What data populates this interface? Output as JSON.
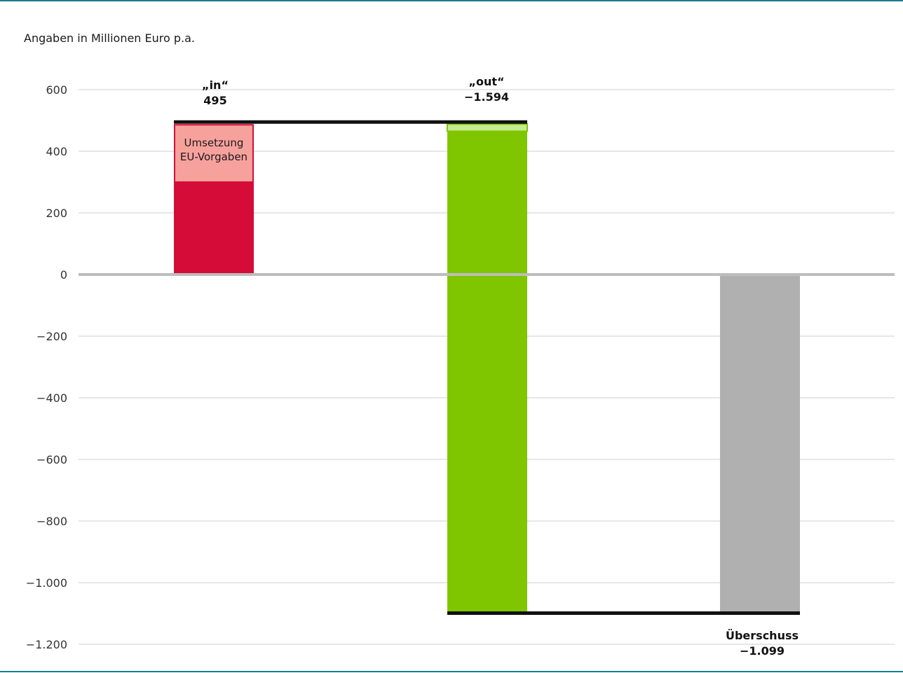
{
  "chart_data": {
    "type": "bar",
    "subtitle": "Angaben in Millionen Euro p.a.",
    "ylim": [
      -1250,
      600
    ],
    "yticks": [
      600,
      400,
      200,
      0,
      -200,
      -400,
      -600,
      -800,
      -1000,
      -1200
    ],
    "ytick_labels": [
      "600",
      "400",
      "200",
      "0",
      "−200",
      "−400",
      "−600",
      "−800",
      "−1.000",
      "−1.200"
    ],
    "grid": true,
    "colors": {
      "in": "#d50c38",
      "in_eu": "#f7a19d",
      "out": "#80c600",
      "out_eu": "#c6ec92",
      "surplus": "#b0b0b0",
      "axis_rule": "#1a7d8c"
    },
    "bars": [
      {
        "name": "„in“",
        "value_label": "495",
        "start": 0,
        "end": 495,
        "segments": [
          {
            "from": 0,
            "to": 300,
            "label": ""
          },
          {
            "from": 300,
            "to": 495,
            "label_lines": [
              "Umsetzung",
              "EU-Vorgaben"
            ]
          }
        ]
      },
      {
        "name": "„out“",
        "value_label": "−1.594",
        "start": 495,
        "end": -1099,
        "segments": [
          {
            "from": -1099,
            "to": 465,
            "label": ""
          },
          {
            "from": 465,
            "to": 495,
            "label": ""
          }
        ]
      },
      {
        "name": "Überschuss",
        "value_label": "−1.099",
        "start": 0,
        "end": -1099
      }
    ]
  }
}
